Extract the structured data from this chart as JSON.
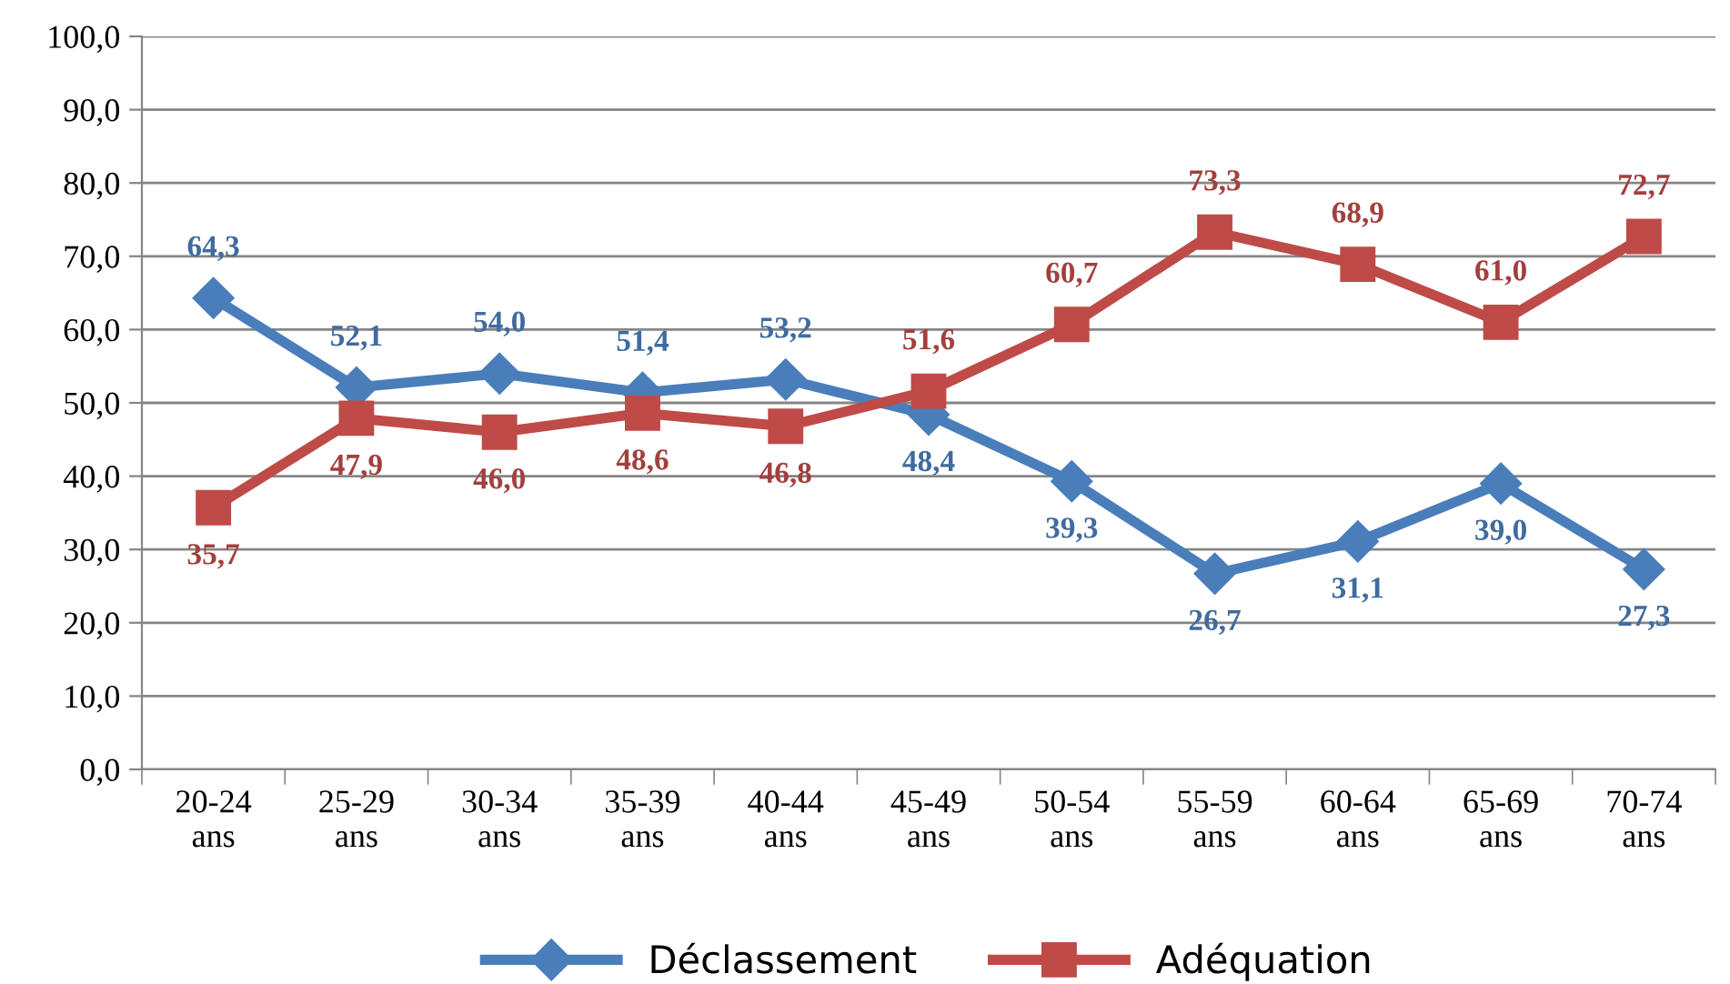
{
  "chart_data": {
    "type": "line",
    "categories": [
      "20-24\nans",
      "25-29\nans",
      "30-34\nans",
      "35-39\nans",
      "40-44\nans",
      "45-49\nans",
      "50-54\nans",
      "55-59\nans",
      "60-64\nans",
      "65-69\nans",
      "70-74\nans"
    ],
    "series": [
      {
        "name": "Déclassement",
        "color": "#4a7ebb",
        "marker": "diamond",
        "values": [
          64.3,
          52.1,
          54.0,
          51.4,
          53.2,
          48.4,
          39.3,
          26.7,
          31.1,
          39.0,
          27.3
        ],
        "value_labels": [
          "64,3",
          "52,1",
          "54,0",
          "51,4",
          "53,2",
          "48,4",
          "39,3",
          "26,7",
          "31,1",
          "39,0",
          "27,3"
        ]
      },
      {
        "name": "Adéquation",
        "color": "#be4b48",
        "marker": "square",
        "values": [
          35.7,
          47.9,
          46.0,
          48.6,
          46.8,
          51.6,
          60.7,
          73.3,
          68.9,
          61.0,
          72.7
        ],
        "value_labels": [
          "35,7",
          "47,9",
          "46,0",
          "48,6",
          "46,8",
          "51,6",
          "60,7",
          "73,3",
          "68,9",
          "61,0",
          "72,7"
        ]
      }
    ],
    "ylim": [
      0,
      100
    ],
    "yticks": [
      {
        "value": 0,
        "label": "0,0"
      },
      {
        "value": 10,
        "label": "10,0"
      },
      {
        "value": 20,
        "label": "20,0"
      },
      {
        "value": 30,
        "label": "30,0"
      },
      {
        "value": 40,
        "label": "40,0"
      },
      {
        "value": 50,
        "label": "50,0"
      },
      {
        "value": 60,
        "label": "60,0"
      },
      {
        "value": 70,
        "label": "70,0"
      },
      {
        "value": 80,
        "label": "80,0"
      },
      {
        "value": 90,
        "label": "90,0"
      },
      {
        "value": 100,
        "label": "100,0"
      }
    ],
    "grid": "y",
    "legend": "bottom",
    "line_style": "solid"
  }
}
